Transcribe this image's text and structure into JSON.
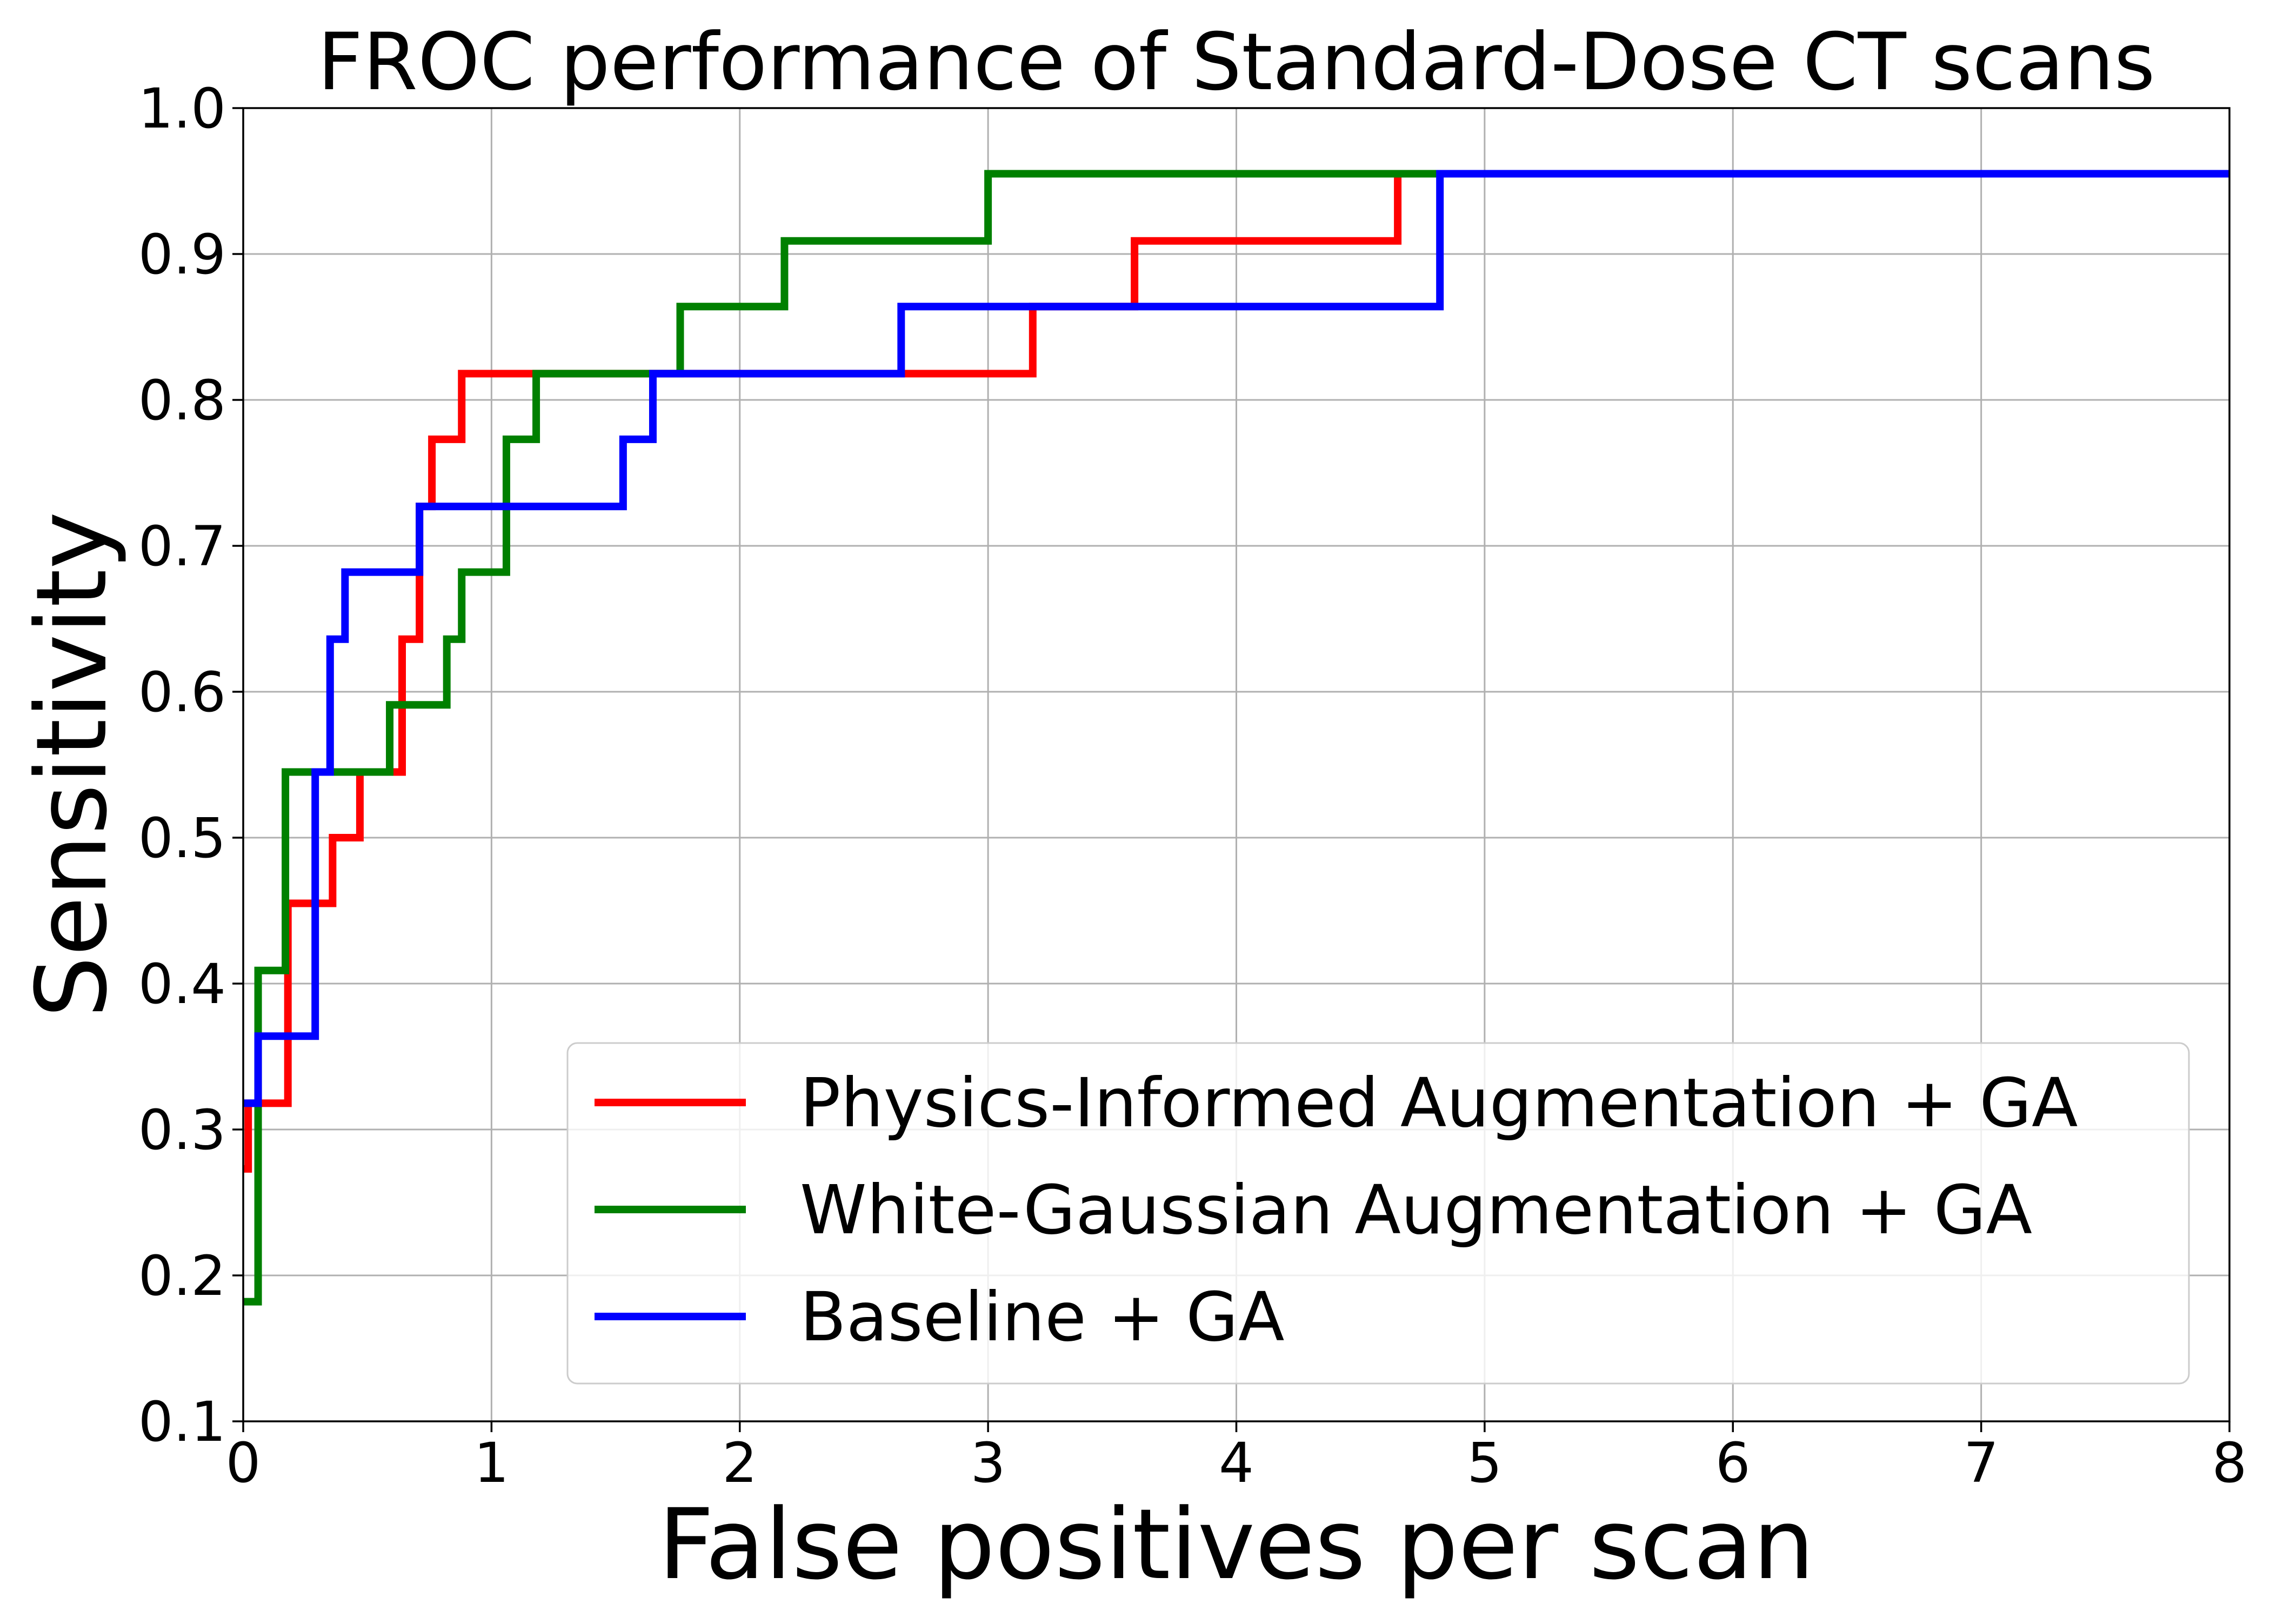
{
  "chart_data": {
    "type": "line",
    "title": "FROC performance of Standard-Dose CT scans",
    "xlabel": "False positives per scan",
    "ylabel": "Sensitivity",
    "xlim": [
      0,
      8
    ],
    "ylim": [
      0.1,
      1.0
    ],
    "x_ticks": [
      0,
      1,
      2,
      3,
      4,
      5,
      6,
      7,
      8
    ],
    "x_tick_labels": [
      "0",
      "1",
      "2",
      "3",
      "4",
      "5",
      "6",
      "7",
      "8"
    ],
    "y_ticks": [
      0.1,
      0.2,
      0.3,
      0.4,
      0.5,
      0.6,
      0.7,
      0.8,
      0.9,
      1.0
    ],
    "y_tick_labels": [
      "0.1",
      "0.2",
      "0.3",
      "0.4",
      "0.5",
      "0.6",
      "0.7",
      "0.8",
      "0.9",
      "1.0"
    ],
    "grid": true,
    "legend_position": "lower-right",
    "step_style": "post",
    "series": [
      {
        "name": "Physics-Informed Augmentation + GA",
        "color": "#ff0000",
        "x": [
          0.0,
          0.02,
          0.18,
          0.36,
          0.47,
          0.64,
          0.71,
          0.76,
          0.88,
          1.18,
          3.18,
          3.59,
          4.65,
          8.0
        ],
        "y": [
          0.273,
          0.318,
          0.455,
          0.5,
          0.545,
          0.636,
          0.727,
          0.773,
          0.818,
          0.818,
          0.864,
          0.909,
          0.955,
          0.955
        ]
      },
      {
        "name": "White-Gaussian Augmentation + GA",
        "color": "#008000",
        "x": [
          0.0,
          0.06,
          0.17,
          0.59,
          0.82,
          0.88,
          1.06,
          1.18,
          1.76,
          2.18,
          3.0,
          8.0
        ],
        "y": [
          0.182,
          0.409,
          0.545,
          0.591,
          0.636,
          0.682,
          0.773,
          0.818,
          0.864,
          0.909,
          0.955,
          0.955
        ]
      },
      {
        "name": "Baseline + GA",
        "color": "#0000ff",
        "x": [
          0.0,
          0.06,
          0.29,
          0.35,
          0.41,
          0.71,
          1.53,
          1.65,
          2.65,
          4.82,
          8.0
        ],
        "y": [
          0.318,
          0.364,
          0.545,
          0.636,
          0.682,
          0.727,
          0.773,
          0.818,
          0.864,
          0.955,
          0.955
        ]
      }
    ]
  }
}
